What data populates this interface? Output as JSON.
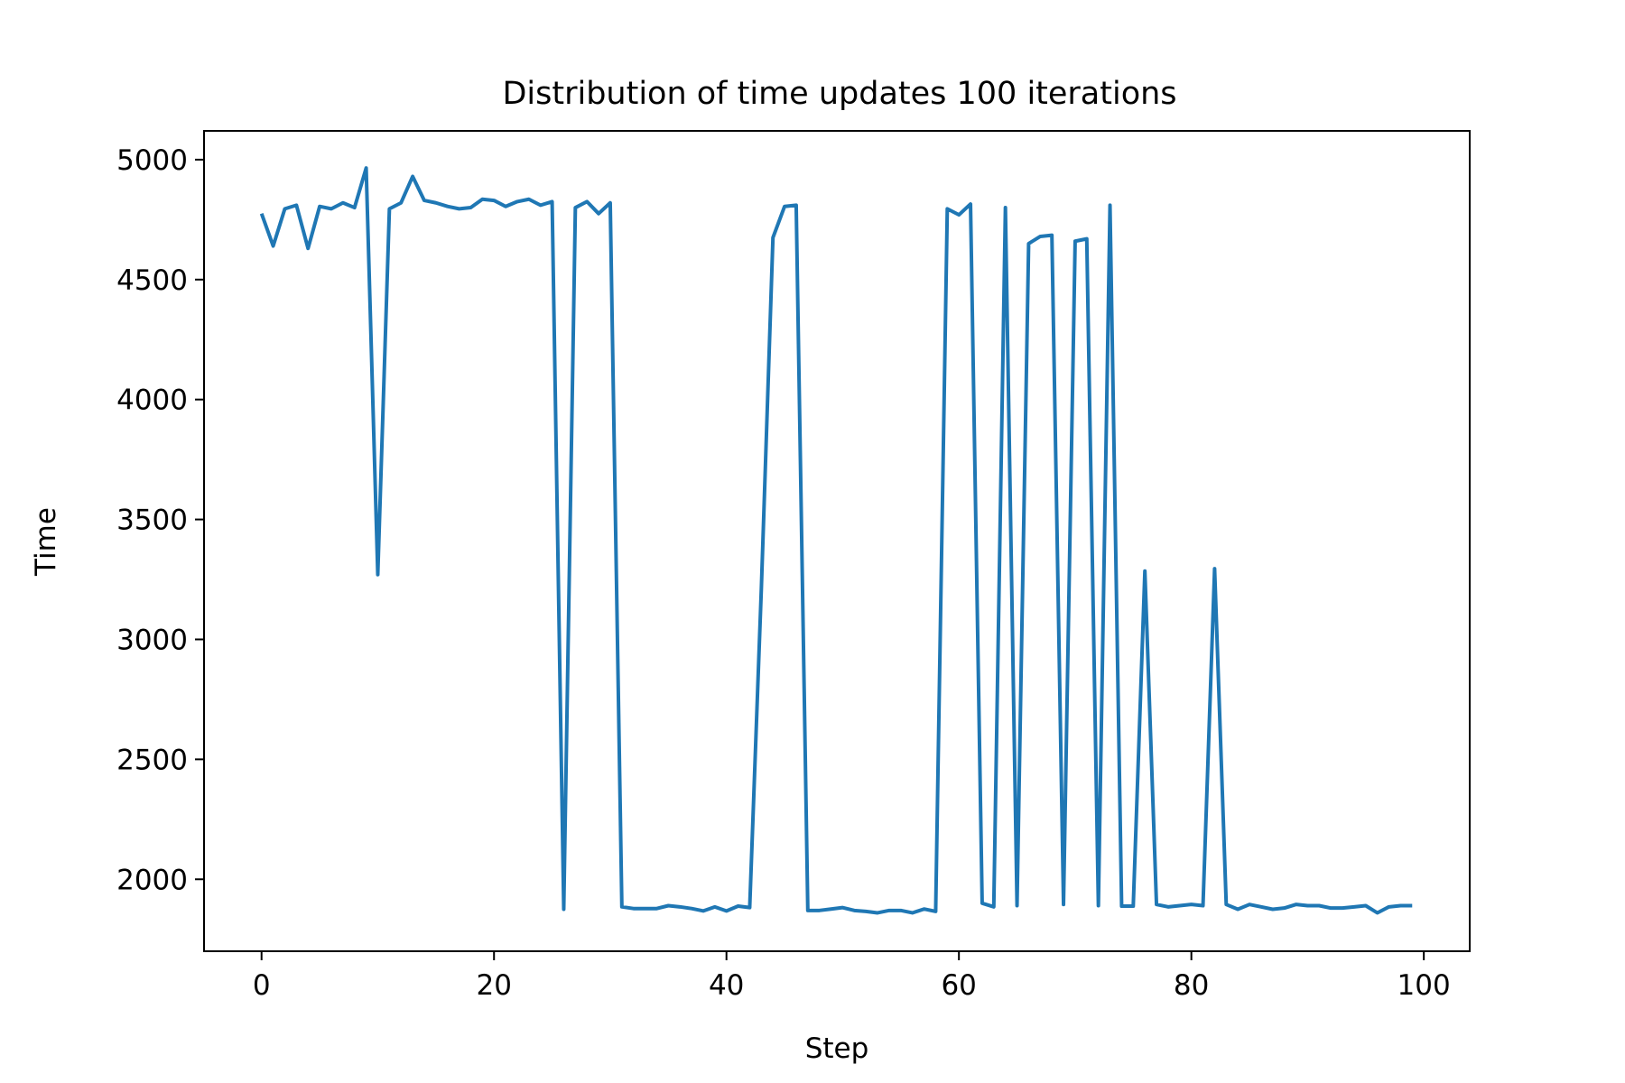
{
  "chart_data": {
    "type": "line",
    "title": "Distribution of time updates 100 iterations",
    "xlabel": "Step",
    "ylabel": "Time",
    "xlim": [
      -4.95,
      103.95
    ],
    "ylim": [
      1700,
      5120
    ],
    "xticks": [
      0,
      20,
      40,
      60,
      80,
      100
    ],
    "yticks": [
      2000,
      2500,
      3000,
      3500,
      4000,
      4500,
      5000
    ],
    "grid": false,
    "legend": "none",
    "series": [
      {
        "color": "#1f77b4",
        "x": [
          0,
          1,
          2,
          3,
          4,
          5,
          6,
          7,
          8,
          9,
          10,
          11,
          12,
          13,
          14,
          15,
          16,
          17,
          18,
          19,
          20,
          21,
          22,
          23,
          24,
          25,
          26,
          27,
          28,
          29,
          30,
          31,
          32,
          33,
          34,
          35,
          36,
          37,
          38,
          39,
          40,
          41,
          42,
          43,
          44,
          45,
          46,
          47,
          48,
          49,
          50,
          51,
          52,
          53,
          54,
          55,
          56,
          57,
          58,
          59,
          60,
          61,
          62,
          63,
          64,
          65,
          66,
          67,
          68,
          69,
          70,
          71,
          72,
          73,
          74,
          75,
          76,
          77,
          78,
          79,
          80,
          81,
          82,
          83,
          84,
          85,
          86,
          87,
          88,
          89,
          90,
          91,
          92,
          93,
          94,
          95,
          96,
          97,
          98,
          99
        ],
        "values": [
          4775,
          4640,
          4795,
          4810,
          4630,
          4805,
          4795,
          4820,
          4800,
          4965,
          3270,
          4795,
          4820,
          4930,
          4830,
          4820,
          4805,
          4795,
          4800,
          4835,
          4830,
          4805,
          4825,
          4835,
          4810,
          4825,
          1875,
          4800,
          4825,
          4775,
          4820,
          1885,
          1878,
          1878,
          1878,
          1890,
          1885,
          1878,
          1868,
          1885,
          1868,
          1888,
          1882,
          3210,
          4675,
          4805,
          4810,
          1870,
          1870,
          1876,
          1882,
          1870,
          1866,
          1860,
          1870,
          1870,
          1860,
          1876,
          1866,
          4795,
          4770,
          4815,
          1900,
          1885,
          4800,
          1890,
          4650,
          4680,
          4685,
          1895,
          4660,
          4670,
          1890,
          4810,
          1888,
          1888,
          3285,
          1895,
          1885,
          1890,
          1895,
          1890,
          3295,
          1895,
          1875,
          1895,
          1885,
          1875,
          1880,
          1895,
          1890,
          1890,
          1880,
          1880,
          1885,
          1890,
          1860,
          1885,
          1890,
          1890
        ]
      }
    ]
  }
}
